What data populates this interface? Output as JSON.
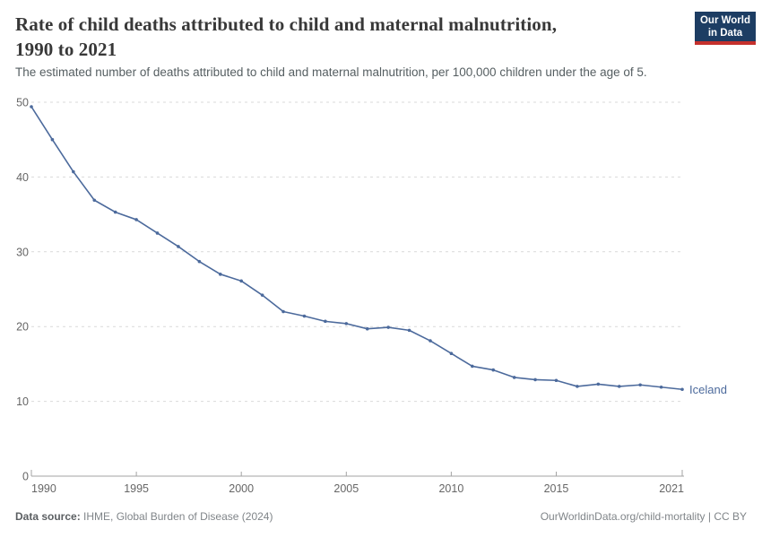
{
  "header": {
    "title_line1": "Rate of child deaths attributed to child and maternal malnutrition,",
    "title_line2": "1990 to 2021",
    "subtitle": "The estimated number of deaths attributed to child and maternal malnutrition, per 100,000 children under the age of 5.",
    "logo": {
      "line1": "Our World",
      "line2": "in Data",
      "bg_color": "#1d3d63",
      "stripe_color": "#c5302d"
    }
  },
  "chart_data": {
    "type": "line",
    "title": "Rate of child deaths attributed to child and maternal malnutrition, 1990 to 2021",
    "subtitle": "The estimated number of deaths attributed to child and maternal malnutrition, per 100,000 children under the age of 5.",
    "xlabel": "",
    "ylabel": "",
    "xlim": [
      1990,
      2021
    ],
    "ylim": [
      0,
      50
    ],
    "x_ticks": [
      1990,
      1995,
      2000,
      2005,
      2010,
      2015,
      2021
    ],
    "y_ticks": [
      0,
      10,
      20,
      30,
      40,
      50
    ],
    "grid": "horizontal-dashed",
    "legend_position": "end-of-line-label",
    "colors": {
      "gridline": "#d9d9d9",
      "axis_line": "#a3a3a3",
      "tick_label": "#666666"
    },
    "x": [
      1990,
      1991,
      1992,
      1993,
      1994,
      1995,
      1996,
      1997,
      1998,
      1999,
      2000,
      2001,
      2002,
      2003,
      2004,
      2005,
      2006,
      2007,
      2008,
      2009,
      2010,
      2011,
      2012,
      2013,
      2014,
      2015,
      2016,
      2017,
      2018,
      2019,
      2020,
      2021
    ],
    "series": [
      {
        "name": "Iceland",
        "color": "#4c6a9c",
        "values": [
          49.4,
          45.0,
          40.7,
          36.9,
          35.3,
          34.3,
          32.5,
          30.7,
          28.7,
          27.0,
          26.1,
          24.2,
          22.0,
          21.4,
          20.7,
          20.4,
          19.7,
          19.9,
          19.5,
          18.1,
          16.4,
          14.7,
          14.2,
          13.2,
          12.9,
          12.8,
          12.0,
          12.3,
          12.0,
          12.2,
          11.9,
          11.6
        ]
      }
    ]
  },
  "footer": {
    "source_label": "Data source:",
    "source_text": " IHME, Global Burden of Disease (2024)",
    "credit": "OurWorldinData.org/child-mortality | CC BY"
  }
}
